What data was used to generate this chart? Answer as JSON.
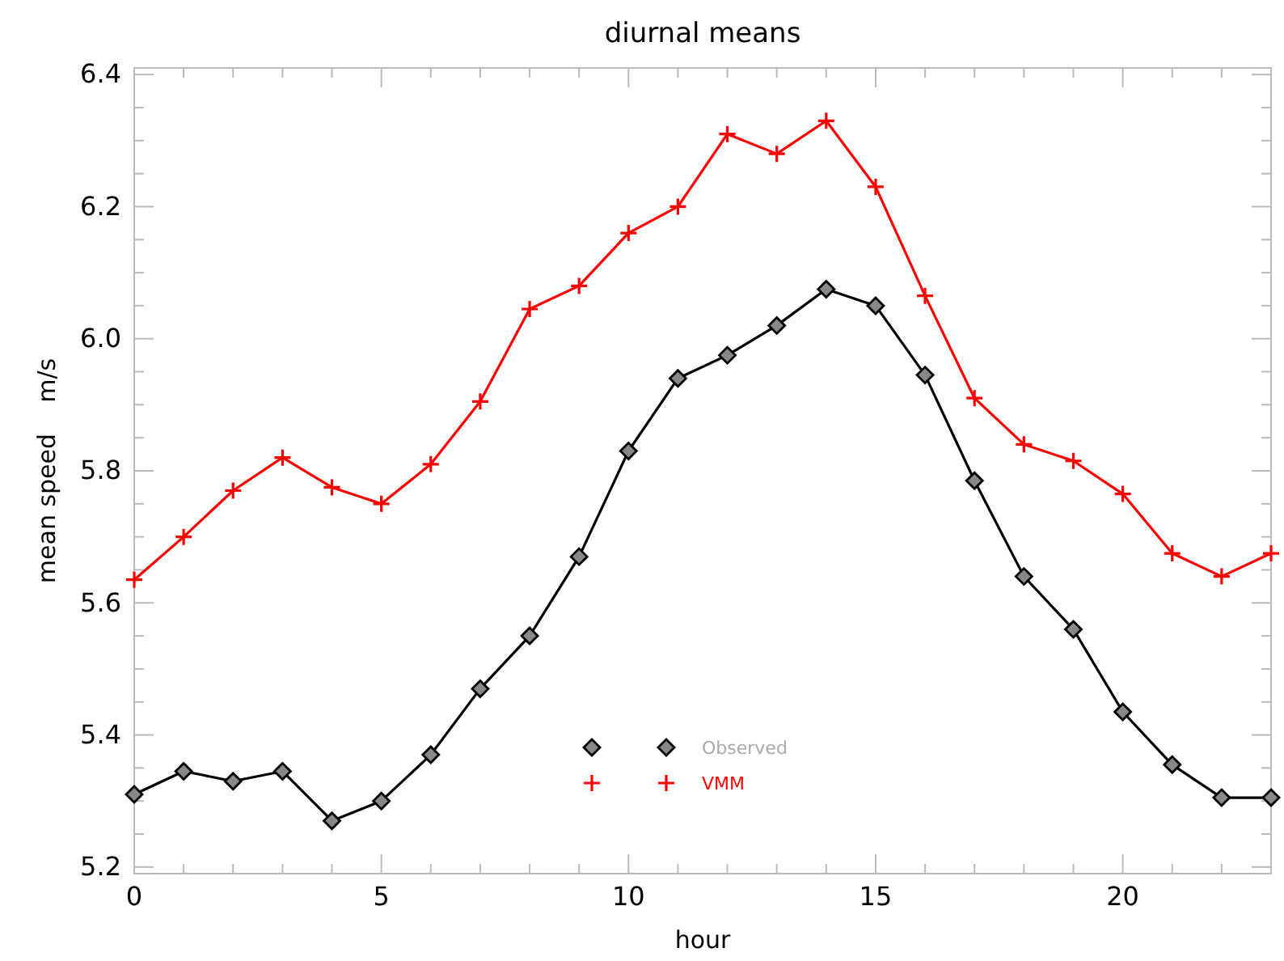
{
  "chart_data": {
    "type": "line",
    "title": "diurnal means",
    "xlabel": "hour",
    "ylabel": "mean speed    m/s",
    "x": [
      0,
      1,
      2,
      3,
      4,
      5,
      6,
      7,
      8,
      9,
      10,
      11,
      12,
      13,
      14,
      15,
      16,
      17,
      18,
      19,
      20,
      21,
      22,
      23
    ],
    "series": [
      {
        "name": "Observed",
        "color": "#000000",
        "marker": "diamond",
        "values": [
          5.31,
          5.345,
          5.33,
          5.345,
          5.27,
          5.3,
          5.37,
          5.47,
          5.55,
          5.67,
          5.83,
          5.94,
          5.975,
          6.02,
          6.075,
          6.05,
          5.945,
          5.785,
          5.64,
          5.56,
          5.435,
          5.355,
          5.305,
          5.305
        ]
      },
      {
        "name": "VMM",
        "color": "#ff0000",
        "marker": "cross",
        "values": [
          5.635,
          5.7,
          5.77,
          5.82,
          5.775,
          5.75,
          5.81,
          5.905,
          6.045,
          6.08,
          6.16,
          6.2,
          6.31,
          6.28,
          6.33,
          6.23,
          6.065,
          5.91,
          5.84,
          5.815,
          5.765,
          5.675,
          5.64,
          5.675
        ]
      }
    ],
    "xlim": [
      0,
      23
    ],
    "xticks": [
      0,
      {
        "value": 1,
        "label": null
      },
      {
        "value": 2,
        "label": null
      },
      {
        "value": 3,
        "label": null
      },
      {
        "value": 4,
        "label": null
      },
      5,
      {
        "value": 6,
        "label": null
      },
      {
        "value": 7,
        "label": null
      },
      {
        "value": 8,
        "label": null
      },
      {
        "value": 9,
        "label": null
      },
      10,
      {
        "value": 11,
        "label": null
      },
      {
        "value": 12,
        "label": null
      },
      {
        "value": 13,
        "label": null
      },
      {
        "value": 14,
        "label": null
      },
      15,
      {
        "value": 16,
        "label": null
      },
      {
        "value": 17,
        "label": null
      },
      {
        "value": 18,
        "label": null
      },
      {
        "value": 19,
        "label": null
      },
      20,
      {
        "value": 21,
        "label": null
      },
      {
        "value": 22,
        "label": null
      }
    ],
    "ylim": [
      5.19,
      6.41
    ],
    "yticks": [
      {
        "value": 5.2,
        "label": "5.2"
      },
      {
        "value": 5.25,
        "label": null
      },
      {
        "value": 5.3,
        "label": null
      },
      {
        "value": 5.35,
        "label": null
      },
      {
        "value": 5.4,
        "label": "5.4"
      },
      {
        "value": 5.45,
        "label": null
      },
      {
        "value": 5.5,
        "label": null
      },
      {
        "value": 5.55,
        "label": null
      },
      {
        "value": 5.6,
        "label": "5.6"
      },
      {
        "value": 5.65,
        "label": null
      },
      {
        "value": 5.7,
        "label": null
      },
      {
        "value": 5.75,
        "label": null
      },
      {
        "value": 5.8,
        "label": "5.8"
      },
      {
        "value": 5.85,
        "label": null
      },
      {
        "value": 5.9,
        "label": null
      },
      {
        "value": 5.95,
        "label": null
      },
      {
        "value": 6.0,
        "label": "6.0"
      },
      {
        "value": 6.05,
        "label": null
      },
      {
        "value": 6.1,
        "label": null
      },
      {
        "value": 6.15,
        "label": null
      },
      {
        "value": 6.2,
        "label": "6.2"
      },
      {
        "value": 6.25,
        "label": null
      },
      {
        "value": 6.3,
        "label": null
      },
      {
        "value": 6.35,
        "label": null
      },
      {
        "value": 6.4,
        "label": "6.4"
      }
    ],
    "grid": false,
    "legend": "bottom",
    "line_style": "solid"
  }
}
